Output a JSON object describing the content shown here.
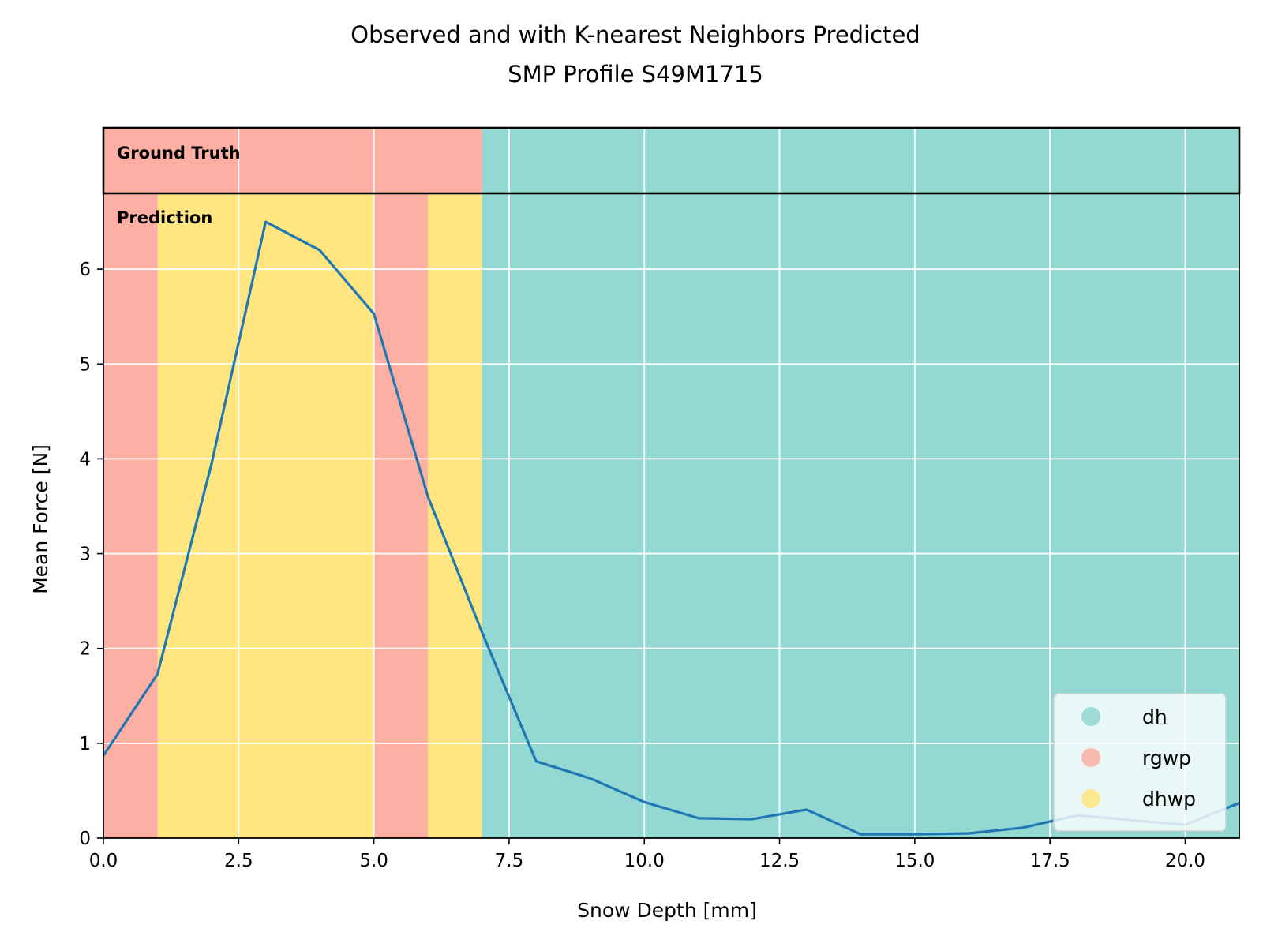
{
  "chart_data": {
    "type": "line",
    "title": "Observed and with K-nearest Neighbors Predicted",
    "subtitle": "SMP Profile S49M1715",
    "xlabel": "Snow Depth [mm]",
    "ylabel": "Mean Force [N]",
    "xlim": [
      0,
      21
    ],
    "ylim": [
      0,
      6.8
    ],
    "x_ticks": [
      0,
      2.5,
      5,
      7.5,
      10,
      12.5,
      15,
      17.5,
      20
    ],
    "x_tick_labels": [
      "0.0",
      "2.5",
      "5.0",
      "7.5",
      "10.0",
      "12.5",
      "15.0",
      "17.5",
      "20.0"
    ],
    "y_ticks": [
      0,
      1,
      2,
      3,
      4,
      5,
      6
    ],
    "y_tick_labels": [
      "0",
      "1",
      "2",
      "3",
      "4",
      "5",
      "6"
    ],
    "grid": true,
    "series": [
      {
        "color": "#1f77b4",
        "x": [
          0,
          1,
          2,
          3,
          4,
          5,
          6,
          7,
          8,
          9,
          10,
          11,
          12,
          13,
          14,
          15,
          16,
          17,
          18,
          19,
          20,
          21
        ],
        "y": [
          0.87,
          1.73,
          3.95,
          6.5,
          6.2,
          5.53,
          3.6,
          2.17,
          0.81,
          0.63,
          0.38,
          0.21,
          0.2,
          0.3,
          0.04,
          0.04,
          0.05,
          0.11,
          0.24,
          0.19,
          0.14,
          0.37
        ]
      }
    ],
    "band_labels": {
      "ground_truth": "Ground Truth",
      "prediction": "Prediction"
    },
    "ground_truth_segments": [
      {
        "start": 0,
        "end": 7,
        "class": "rgwp"
      },
      {
        "start": 7,
        "end": 21,
        "class": "dh"
      }
    ],
    "prediction_segments": [
      {
        "start": 0,
        "end": 1,
        "class": "rgwp"
      },
      {
        "start": 1,
        "end": 5,
        "class": "dhwp"
      },
      {
        "start": 5,
        "end": 6,
        "class": "rgwp"
      },
      {
        "start": 6,
        "end": 7,
        "class": "dhwp"
      },
      {
        "start": 7,
        "end": 21,
        "class": "dh"
      }
    ],
    "legend": {
      "position": "lower right",
      "entries": [
        {
          "label": "dh",
          "color": "#93d8d3"
        },
        {
          "label": "rgwp",
          "color": "#feafa3"
        },
        {
          "label": "dhwp",
          "color": "#ffe681"
        }
      ]
    },
    "class_colors": {
      "dh": "#93d8d3",
      "rgwp": "#feafa3",
      "dhwp": "#ffe681"
    }
  }
}
